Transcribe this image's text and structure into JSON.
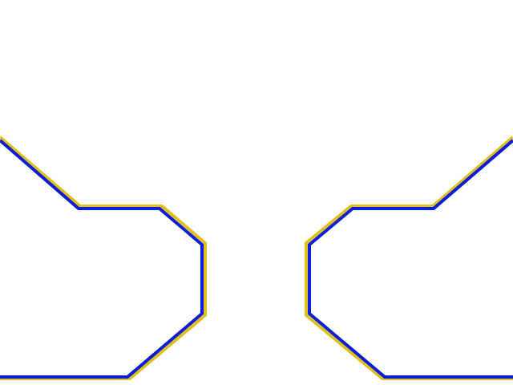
{
  "colors": {
    "background": "#ffffff",
    "outline_outer": "#e0c020",
    "outline_inner": "#0a1ed8"
  },
  "shapes": {
    "left_bracket": {
      "name": "left-bracket-outline"
    },
    "right_bracket": {
      "name": "right-bracket-outline"
    }
  }
}
